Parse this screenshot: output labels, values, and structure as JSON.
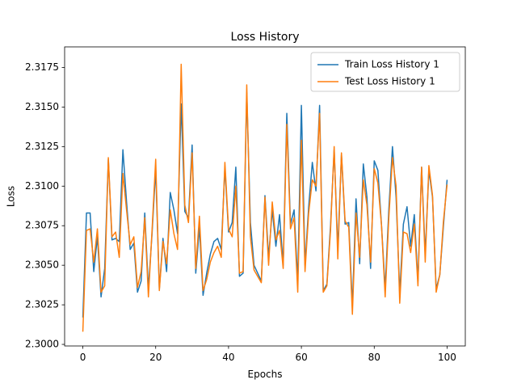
{
  "chart_data": {
    "type": "line",
    "title": "Loss History",
    "xlabel": "Epochs",
    "ylabel": "Loss",
    "xlim": [
      -5,
      105
    ],
    "ylim": [
      2.2999,
      2.3188
    ],
    "xticks": [
      0,
      20,
      40,
      60,
      80,
      100
    ],
    "yticks": [
      2.3,
      2.3025,
      2.305,
      2.3075,
      2.31,
      2.3125,
      2.315,
      2.3175
    ],
    "ytick_labels": [
      "2.3000",
      "2.3025",
      "2.3050",
      "2.3075",
      "2.3100",
      "2.3125",
      "2.3150",
      "2.3175"
    ],
    "grid": false,
    "legend_position": "top-right",
    "series": [
      {
        "name": "Train Loss History 1",
        "color": "#1f77b4",
        "x": [
          0,
          1,
          2,
          3,
          4,
          5,
          6,
          7,
          8,
          9,
          10,
          11,
          12,
          13,
          14,
          15,
          16,
          17,
          18,
          19,
          20,
          21,
          22,
          23,
          24,
          25,
          26,
          27,
          28,
          29,
          30,
          31,
          32,
          33,
          34,
          35,
          36,
          37,
          38,
          39,
          40,
          41,
          42,
          43,
          44,
          45,
          46,
          47,
          48,
          49,
          50,
          51,
          52,
          53,
          54,
          55,
          56,
          57,
          58,
          59,
          60,
          61,
          62,
          63,
          64,
          65,
          66,
          67,
          68,
          69,
          70,
          71,
          72,
          73,
          74,
          75,
          76,
          77,
          78,
          79,
          80,
          81,
          82,
          83,
          84,
          85,
          86,
          87,
          88,
          89,
          90,
          91,
          92,
          93,
          94,
          95,
          96,
          97,
          98,
          99,
          100
        ],
        "values": [
          2.3017,
          2.3083,
          2.3083,
          2.3046,
          2.3068,
          2.303,
          2.3048,
          2.3117,
          2.3066,
          2.3067,
          2.3065,
          2.3123,
          2.309,
          2.306,
          2.3064,
          2.3033,
          2.304,
          2.3083,
          2.3035,
          2.307,
          2.3111,
          2.3035,
          2.3067,
          2.3046,
          2.3096,
          2.3085,
          2.307,
          2.3152,
          2.3084,
          2.308,
          2.3126,
          2.3045,
          2.3074,
          2.3031,
          2.3045,
          2.3057,
          2.3065,
          2.3067,
          2.306,
          2.3112,
          2.3071,
          2.3077,
          2.3112,
          2.3043,
          2.3045,
          2.3159,
          2.3077,
          2.305,
          2.3045,
          2.304,
          2.3094,
          2.3055,
          2.3085,
          2.3062,
          2.3082,
          2.305,
          2.3146,
          2.3076,
          2.3085,
          2.304,
          2.3151,
          2.305,
          2.3087,
          2.3115,
          2.3097,
          2.3151,
          2.3034,
          2.3038,
          2.3075,
          2.3123,
          2.306,
          2.312,
          2.3076,
          2.3077,
          2.3024,
          2.3092,
          2.3051,
          2.3114,
          2.3093,
          2.3048,
          2.3116,
          2.311,
          2.3075,
          2.3035,
          2.3085,
          2.3125,
          2.3093,
          2.3032,
          2.3076,
          2.3087,
          2.3062,
          2.3082,
          2.304,
          2.3112,
          2.3057,
          2.311,
          2.3093,
          2.3035,
          2.3044,
          2.3075,
          2.3104
        ]
      },
      {
        "name": "Test Loss History 1",
        "color": "#ff7f0e",
        "x": [
          0,
          1,
          2,
          3,
          4,
          5,
          6,
          7,
          8,
          9,
          10,
          11,
          12,
          13,
          14,
          15,
          16,
          17,
          18,
          19,
          20,
          21,
          22,
          23,
          24,
          25,
          26,
          27,
          28,
          29,
          30,
          31,
          32,
          33,
          34,
          35,
          36,
          37,
          38,
          39,
          40,
          41,
          42,
          43,
          44,
          45,
          46,
          47,
          48,
          49,
          50,
          51,
          52,
          53,
          54,
          55,
          56,
          57,
          58,
          59,
          60,
          61,
          62,
          63,
          64,
          65,
          66,
          67,
          68,
          69,
          70,
          71,
          72,
          73,
          74,
          75,
          76,
          77,
          78,
          79,
          80,
          81,
          82,
          83,
          84,
          85,
          86,
          87,
          88,
          89,
          90,
          91,
          92,
          93,
          94,
          95,
          96,
          97,
          98,
          99,
          100
        ],
        "values": [
          2.3008,
          2.3072,
          2.3073,
          2.3052,
          2.3073,
          2.3033,
          2.3037,
          2.3118,
          2.3068,
          2.3071,
          2.3055,
          2.3108,
          2.3085,
          2.3063,
          2.3068,
          2.3036,
          2.3046,
          2.308,
          2.303,
          2.3072,
          2.3117,
          2.3034,
          2.3065,
          2.3051,
          2.3085,
          2.307,
          2.306,
          2.3177,
          2.3088,
          2.3077,
          2.3121,
          2.3048,
          2.3081,
          2.3034,
          2.3041,
          2.3052,
          2.3058,
          2.3062,
          2.3055,
          2.3115,
          2.3073,
          2.3068,
          2.31,
          2.3045,
          2.3046,
          2.3164,
          2.3068,
          2.3047,
          2.3043,
          2.3039,
          2.3093,
          2.305,
          2.309,
          2.3066,
          2.3072,
          2.3048,
          2.3139,
          2.3073,
          2.308,
          2.3033,
          2.3129,
          2.3046,
          2.3083,
          2.3104,
          2.31,
          2.3146,
          2.3033,
          2.3037,
          2.3072,
          2.3125,
          2.3054,
          2.3121,
          2.3078,
          2.3074,
          2.3019,
          2.3083,
          2.3055,
          2.3104,
          2.3088,
          2.3052,
          2.3111,
          2.3102,
          2.3075,
          2.303,
          2.308,
          2.3118,
          2.31,
          2.3026,
          2.3071,
          2.307,
          2.3058,
          2.3076,
          2.3037,
          2.3112,
          2.3052,
          2.3113,
          2.3094,
          2.3033,
          2.3044,
          2.3078,
          2.3101
        ]
      }
    ]
  }
}
